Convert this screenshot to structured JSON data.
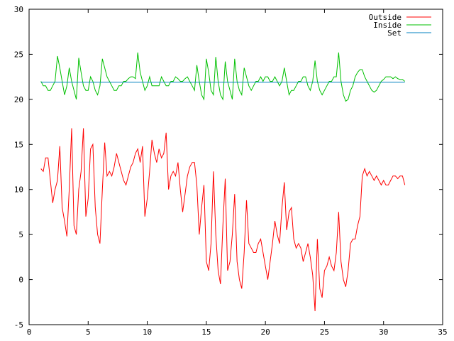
{
  "chart_data": {
    "type": "line",
    "title": "",
    "xlabel": "",
    "ylabel": "",
    "xlim": [
      0,
      35
    ],
    "ylim": [
      -5,
      30
    ],
    "xticks": [
      0,
      5,
      10,
      15,
      20,
      25,
      30,
      35
    ],
    "yticks": [
      -5,
      0,
      5,
      10,
      15,
      20,
      25,
      30
    ],
    "xtick_labels": [
      "0",
      "5",
      "10",
      "15",
      "20",
      "25",
      "30",
      "35"
    ],
    "ytick_labels": [
      "-5",
      "0",
      "5",
      "10",
      "15",
      "20",
      "25",
      "30"
    ],
    "grid": false,
    "legend_position": "top-right",
    "series": [
      {
        "name": "Outside",
        "color": "#ff0000",
        "points": [
          [
            1.0,
            12.3
          ],
          [
            1.2,
            12.0
          ],
          [
            1.4,
            13.5
          ],
          [
            1.6,
            13.5
          ],
          [
            1.8,
            11.0
          ],
          [
            2.0,
            8.5
          ],
          [
            2.2,
            10.0
          ],
          [
            2.4,
            11.0
          ],
          [
            2.6,
            14.8
          ],
          [
            2.8,
            8.0
          ],
          [
            3.0,
            6.5
          ],
          [
            3.2,
            4.8
          ],
          [
            3.4,
            10.0
          ],
          [
            3.6,
            16.8
          ],
          [
            3.8,
            6.0
          ],
          [
            4.0,
            5.0
          ],
          [
            4.2,
            10.0
          ],
          [
            4.4,
            12.0
          ],
          [
            4.6,
            16.8
          ],
          [
            4.8,
            7.0
          ],
          [
            5.0,
            9.0
          ],
          [
            5.2,
            14.5
          ],
          [
            5.4,
            15.0
          ],
          [
            5.6,
            8.0
          ],
          [
            5.8,
            5.0
          ],
          [
            6.0,
            4.0
          ],
          [
            6.2,
            10.0
          ],
          [
            6.4,
            15.2
          ],
          [
            6.6,
            11.5
          ],
          [
            6.8,
            12.0
          ],
          [
            7.0,
            11.5
          ],
          [
            7.2,
            12.5
          ],
          [
            7.4,
            14.0
          ],
          [
            7.6,
            13.0
          ],
          [
            7.8,
            12.0
          ],
          [
            8.0,
            11.0
          ],
          [
            8.2,
            10.5
          ],
          [
            8.4,
            11.5
          ],
          [
            8.6,
            12.5
          ],
          [
            8.8,
            13.0
          ],
          [
            9.0,
            14.0
          ],
          [
            9.2,
            14.5
          ],
          [
            9.4,
            13.0
          ],
          [
            9.6,
            14.8
          ],
          [
            9.8,
            7.0
          ],
          [
            10.0,
            9.0
          ],
          [
            10.2,
            12.0
          ],
          [
            10.4,
            15.5
          ],
          [
            10.6,
            14.0
          ],
          [
            10.8,
            13.0
          ],
          [
            11.0,
            14.5
          ],
          [
            11.2,
            13.5
          ],
          [
            11.4,
            14.0
          ],
          [
            11.6,
            16.3
          ],
          [
            11.8,
            10.0
          ],
          [
            12.0,
            11.5
          ],
          [
            12.2,
            12.0
          ],
          [
            12.4,
            11.5
          ],
          [
            12.6,
            13.0
          ],
          [
            12.8,
            10.0
          ],
          [
            13.0,
            7.5
          ],
          [
            13.2,
            9.5
          ],
          [
            13.4,
            11.5
          ],
          [
            13.6,
            12.5
          ],
          [
            13.8,
            13.0
          ],
          [
            14.0,
            13.0
          ],
          [
            14.2,
            10.5
          ],
          [
            14.4,
            5.0
          ],
          [
            14.6,
            8.0
          ],
          [
            14.8,
            10.5
          ],
          [
            15.0,
            2.0
          ],
          [
            15.2,
            1.0
          ],
          [
            15.4,
            4.0
          ],
          [
            15.6,
            12.0
          ],
          [
            15.8,
            5.0
          ],
          [
            16.0,
            1.0
          ],
          [
            16.2,
            -0.5
          ],
          [
            16.4,
            6.0
          ],
          [
            16.6,
            11.2
          ],
          [
            16.8,
            1.0
          ],
          [
            17.0,
            2.0
          ],
          [
            17.2,
            5.0
          ],
          [
            17.4,
            9.5
          ],
          [
            17.6,
            2.0
          ],
          [
            17.8,
            0.0
          ],
          [
            18.0,
            -1.0
          ],
          [
            18.2,
            3.0
          ],
          [
            18.4,
            8.8
          ],
          [
            18.6,
            4.0
          ],
          [
            18.8,
            3.5
          ],
          [
            19.0,
            3.0
          ],
          [
            19.2,
            3.0
          ],
          [
            19.4,
            4.0
          ],
          [
            19.6,
            4.5
          ],
          [
            19.8,
            3.0
          ],
          [
            20.0,
            1.5
          ],
          [
            20.2,
            0.0
          ],
          [
            20.4,
            2.0
          ],
          [
            20.6,
            4.0
          ],
          [
            20.8,
            6.5
          ],
          [
            21.0,
            5.0
          ],
          [
            21.2,
            4.0
          ],
          [
            21.4,
            8.0
          ],
          [
            21.6,
            10.8
          ],
          [
            21.8,
            5.5
          ],
          [
            22.0,
            7.5
          ],
          [
            22.2,
            8.0
          ],
          [
            22.4,
            4.5
          ],
          [
            22.6,
            3.5
          ],
          [
            22.8,
            4.0
          ],
          [
            23.0,
            3.5
          ],
          [
            23.2,
            2.0
          ],
          [
            23.4,
            3.0
          ],
          [
            23.6,
            4.0
          ],
          [
            23.8,
            2.5
          ],
          [
            24.0,
            0.5
          ],
          [
            24.2,
            -3.5
          ],
          [
            24.4,
            4.5
          ],
          [
            24.6,
            -1.0
          ],
          [
            24.8,
            -2.0
          ],
          [
            25.0,
            1.0
          ],
          [
            25.2,
            1.5
          ],
          [
            25.4,
            2.5
          ],
          [
            25.6,
            1.5
          ],
          [
            25.8,
            1.0
          ],
          [
            26.0,
            3.0
          ],
          [
            26.2,
            7.5
          ],
          [
            26.4,
            2.0
          ],
          [
            26.6,
            0.0
          ],
          [
            26.8,
            -0.8
          ],
          [
            27.0,
            1.0
          ],
          [
            27.2,
            4.0
          ],
          [
            27.4,
            4.5
          ],
          [
            27.6,
            4.5
          ],
          [
            27.8,
            6.0
          ],
          [
            28.0,
            7.0
          ],
          [
            28.2,
            11.5
          ],
          [
            28.4,
            12.3
          ],
          [
            28.6,
            11.5
          ],
          [
            28.8,
            12.0
          ],
          [
            29.0,
            11.5
          ],
          [
            29.2,
            11.0
          ],
          [
            29.4,
            11.5
          ],
          [
            29.6,
            11.0
          ],
          [
            29.8,
            10.5
          ],
          [
            30.0,
            11.0
          ],
          [
            30.2,
            10.5
          ],
          [
            30.4,
            10.5
          ],
          [
            30.6,
            11.0
          ],
          [
            30.8,
            11.5
          ],
          [
            31.0,
            11.5
          ],
          [
            31.2,
            11.2
          ],
          [
            31.4,
            11.5
          ],
          [
            31.6,
            11.5
          ],
          [
            31.8,
            10.5
          ]
        ]
      },
      {
        "name": "Inside",
        "color": "#00c000",
        "points": [
          [
            1.0,
            22.0
          ],
          [
            1.2,
            21.5
          ],
          [
            1.4,
            21.5
          ],
          [
            1.6,
            21.0
          ],
          [
            1.8,
            21.0
          ],
          [
            2.0,
            21.5
          ],
          [
            2.2,
            22.0
          ],
          [
            2.4,
            24.8
          ],
          [
            2.6,
            23.5
          ],
          [
            2.8,
            22.0
          ],
          [
            3.0,
            20.5
          ],
          [
            3.2,
            21.5
          ],
          [
            3.4,
            23.5
          ],
          [
            3.6,
            22.0
          ],
          [
            3.8,
            21.0
          ],
          [
            4.0,
            20.0
          ],
          [
            4.2,
            24.6
          ],
          [
            4.4,
            23.0
          ],
          [
            4.6,
            21.5
          ],
          [
            4.8,
            21.0
          ],
          [
            5.0,
            21.0
          ],
          [
            5.2,
            22.5
          ],
          [
            5.4,
            22.0
          ],
          [
            5.6,
            21.0
          ],
          [
            5.8,
            20.5
          ],
          [
            6.0,
            21.5
          ],
          [
            6.2,
            24.5
          ],
          [
            6.4,
            23.5
          ],
          [
            6.6,
            22.5
          ],
          [
            6.8,
            22.0
          ],
          [
            7.0,
            21.5
          ],
          [
            7.2,
            21.0
          ],
          [
            7.4,
            21.0
          ],
          [
            7.6,
            21.5
          ],
          [
            7.8,
            21.5
          ],
          [
            8.0,
            22.0
          ],
          [
            8.2,
            22.0
          ],
          [
            8.4,
            22.3
          ],
          [
            8.6,
            22.5
          ],
          [
            8.8,
            22.5
          ],
          [
            9.0,
            22.3
          ],
          [
            9.2,
            25.2
          ],
          [
            9.4,
            23.0
          ],
          [
            9.6,
            22.0
          ],
          [
            9.8,
            21.0
          ],
          [
            10.0,
            21.5
          ],
          [
            10.2,
            22.5
          ],
          [
            10.4,
            21.5
          ],
          [
            10.6,
            21.5
          ],
          [
            10.8,
            21.5
          ],
          [
            11.0,
            21.5
          ],
          [
            11.2,
            22.5
          ],
          [
            11.4,
            22.0
          ],
          [
            11.6,
            21.5
          ],
          [
            11.8,
            21.5
          ],
          [
            12.0,
            22.0
          ],
          [
            12.2,
            22.0
          ],
          [
            12.4,
            22.5
          ],
          [
            12.6,
            22.3
          ],
          [
            12.8,
            22.0
          ],
          [
            13.0,
            22.0
          ],
          [
            13.2,
            22.3
          ],
          [
            13.4,
            22.5
          ],
          [
            13.6,
            22.0
          ],
          [
            13.8,
            21.5
          ],
          [
            14.0,
            21.0
          ],
          [
            14.2,
            23.8
          ],
          [
            14.4,
            22.0
          ],
          [
            14.6,
            20.5
          ],
          [
            14.8,
            20.0
          ],
          [
            15.0,
            24.5
          ],
          [
            15.2,
            23.0
          ],
          [
            15.4,
            21.0
          ],
          [
            15.6,
            20.5
          ],
          [
            15.8,
            24.7
          ],
          [
            16.0,
            22.0
          ],
          [
            16.2,
            20.5
          ],
          [
            16.4,
            20.0
          ],
          [
            16.6,
            24.2
          ],
          [
            16.8,
            22.0
          ],
          [
            17.0,
            21.0
          ],
          [
            17.2,
            20.0
          ],
          [
            17.4,
            24.5
          ],
          [
            17.6,
            22.0
          ],
          [
            17.8,
            21.0
          ],
          [
            18.0,
            20.5
          ],
          [
            18.2,
            23.5
          ],
          [
            18.4,
            22.5
          ],
          [
            18.6,
            21.5
          ],
          [
            18.8,
            21.0
          ],
          [
            19.0,
            21.5
          ],
          [
            19.2,
            22.0
          ],
          [
            19.4,
            22.0
          ],
          [
            19.6,
            22.5
          ],
          [
            19.8,
            22.0
          ],
          [
            20.0,
            22.5
          ],
          [
            20.2,
            22.5
          ],
          [
            20.4,
            22.0
          ],
          [
            20.6,
            22.0
          ],
          [
            20.8,
            22.5
          ],
          [
            21.0,
            22.0
          ],
          [
            21.2,
            21.5
          ],
          [
            21.4,
            22.0
          ],
          [
            21.6,
            23.5
          ],
          [
            21.8,
            22.0
          ],
          [
            22.0,
            20.5
          ],
          [
            22.2,
            21.0
          ],
          [
            22.4,
            21.0
          ],
          [
            22.6,
            21.5
          ],
          [
            22.8,
            22.0
          ],
          [
            23.0,
            22.0
          ],
          [
            23.2,
            22.5
          ],
          [
            23.4,
            22.5
          ],
          [
            23.6,
            21.5
          ],
          [
            23.8,
            21.0
          ],
          [
            24.0,
            22.0
          ],
          [
            24.2,
            24.3
          ],
          [
            24.4,
            22.0
          ],
          [
            24.6,
            21.0
          ],
          [
            24.8,
            20.5
          ],
          [
            25.0,
            21.0
          ],
          [
            25.2,
            21.5
          ],
          [
            25.4,
            22.0
          ],
          [
            25.6,
            22.0
          ],
          [
            25.8,
            22.5
          ],
          [
            26.0,
            22.5
          ],
          [
            26.2,
            25.2
          ],
          [
            26.4,
            22.0
          ],
          [
            26.6,
            20.5
          ],
          [
            26.8,
            19.8
          ],
          [
            27.0,
            20.0
          ],
          [
            27.2,
            21.0
          ],
          [
            27.4,
            21.5
          ],
          [
            27.6,
            22.5
          ],
          [
            27.8,
            23.0
          ],
          [
            28.0,
            23.3
          ],
          [
            28.2,
            23.3
          ],
          [
            28.4,
            22.5
          ],
          [
            28.6,
            22.0
          ],
          [
            28.8,
            21.5
          ],
          [
            29.0,
            21.0
          ],
          [
            29.2,
            20.8
          ],
          [
            29.4,
            21.0
          ],
          [
            29.6,
            21.5
          ],
          [
            29.8,
            22.0
          ],
          [
            30.0,
            22.2
          ],
          [
            30.2,
            22.5
          ],
          [
            30.4,
            22.5
          ],
          [
            30.6,
            22.5
          ],
          [
            30.8,
            22.3
          ],
          [
            31.0,
            22.5
          ],
          [
            31.2,
            22.3
          ],
          [
            31.4,
            22.2
          ],
          [
            31.6,
            22.2
          ],
          [
            31.8,
            22.0
          ]
        ]
      },
      {
        "name": "Set",
        "color": "#0080c0",
        "points": [
          [
            1.0,
            21.9
          ],
          [
            31.8,
            21.9
          ]
        ]
      }
    ]
  }
}
